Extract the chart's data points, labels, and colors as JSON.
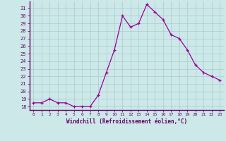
{
  "x": [
    0,
    1,
    2,
    3,
    4,
    5,
    6,
    7,
    8,
    9,
    10,
    11,
    12,
    13,
    14,
    15,
    16,
    17,
    18,
    19,
    20,
    21,
    22,
    23
  ],
  "y": [
    18.5,
    18.5,
    19.0,
    18.5,
    18.5,
    18.0,
    18.0,
    18.0,
    19.5,
    22.5,
    25.5,
    30.0,
    28.5,
    29.0,
    31.5,
    30.5,
    29.5,
    27.5,
    27.0,
    25.5,
    23.5,
    22.5,
    22.0,
    21.5
  ],
  "line_color": "#990099",
  "marker": "+",
  "bg_color": "#cce8e8",
  "grid_color": "#aacccc",
  "xlabel": "Windchill (Refroidissement éolien,°C)",
  "ylabel_ticks": [
    18,
    19,
    20,
    21,
    22,
    23,
    24,
    25,
    26,
    27,
    28,
    29,
    30,
    31
  ],
  "ylim": [
    17.55,
    31.9
  ],
  "xlim": [
    -0.5,
    23.5
  ],
  "xticks": [
    0,
    1,
    2,
    3,
    4,
    5,
    6,
    7,
    8,
    9,
    10,
    11,
    12,
    13,
    14,
    15,
    16,
    17,
    18,
    19,
    20,
    21,
    22,
    23
  ],
  "spine_color": "#660066",
  "tick_color": "#660066",
  "label_color": "#660066"
}
